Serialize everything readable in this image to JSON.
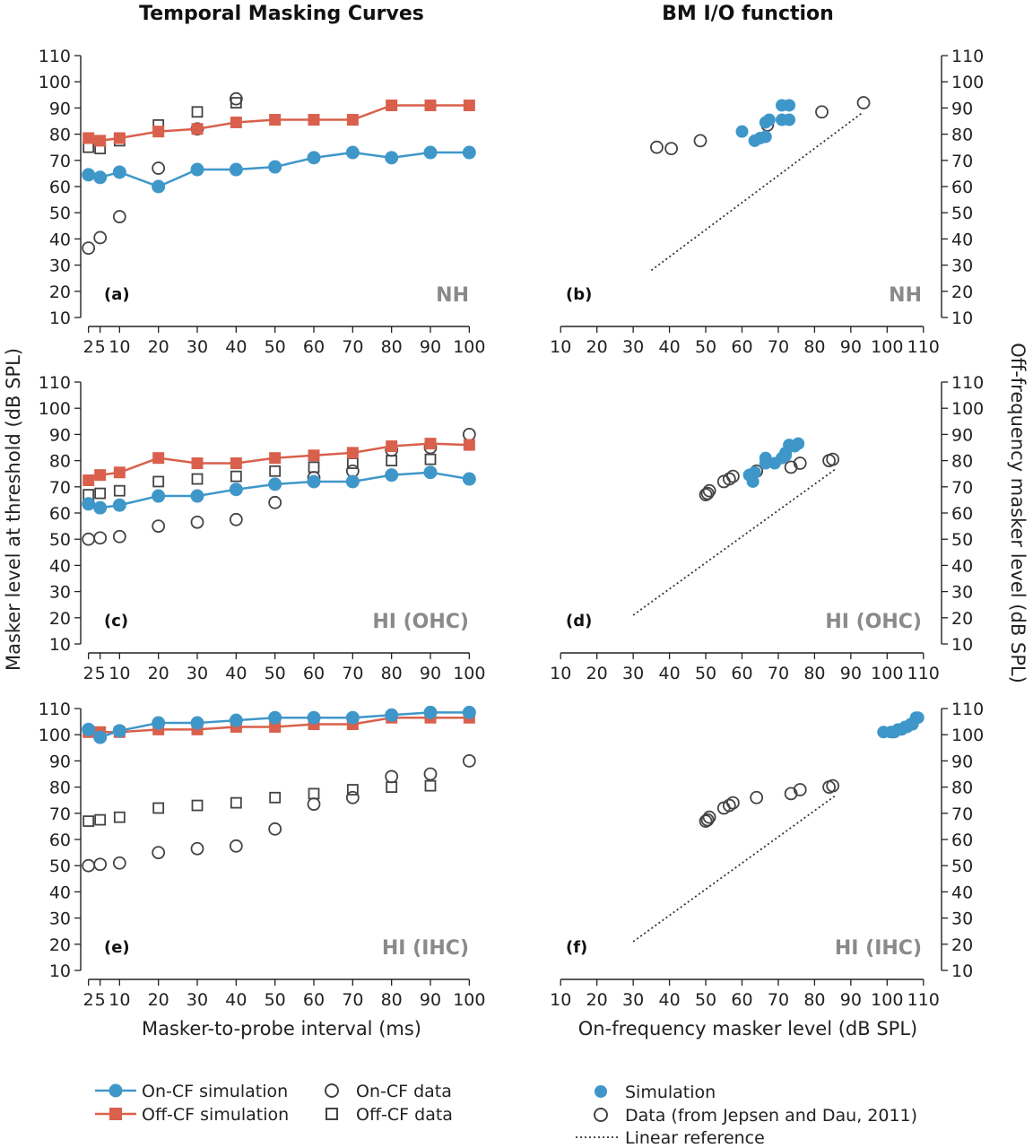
{
  "figure": {
    "left_title": "Temporal Masking Curves",
    "right_title": "BM I/O function",
    "left_ylabel": "Masker level at threshold (dB SPL)",
    "right_ylabel": "Off-frequency masker level (dB SPL)",
    "left_xlabel": "Masker-to-probe interval (ms)",
    "right_xlabel": "On-frequency masker level (dB SPL)"
  },
  "colors": {
    "on_cf": "#3f97c9",
    "off_cf": "#d9604c",
    "data": "#444444",
    "cond_label": "#8a8a8a"
  },
  "legend": {
    "on_cf_sim": "On-CF simulation",
    "off_cf_sim": "Off-CF simulation",
    "on_cf_data": "On-CF data",
    "off_cf_data": "Off-CF data",
    "simulation": "Simulation",
    "data_ref": "Data (from Jepsen and Dau, 2011)",
    "linear_ref": "Linear reference"
  },
  "chart_data": [
    {
      "id": "a",
      "type": "line",
      "panel_label": "(a)",
      "condition": "NH",
      "x_ticks": [
        2,
        5,
        10,
        20,
        30,
        40,
        50,
        60,
        70,
        80,
        90,
        100
      ],
      "x_tick_labels": [
        "2",
        "5",
        "10",
        "20",
        "30",
        "40",
        "50",
        "60",
        "70",
        "80",
        "90",
        "100"
      ],
      "ylim": [
        10,
        110
      ],
      "y_ticks": [
        10,
        20,
        30,
        40,
        50,
        60,
        70,
        80,
        90,
        100,
        110
      ],
      "on_sim": {
        "x": [
          2,
          5,
          10,
          20,
          30,
          40,
          50,
          60,
          70,
          80,
          90,
          100
        ],
        "y": [
          64.5,
          63.5,
          65.5,
          60,
          66.5,
          66.5,
          67.5,
          71,
          73,
          71,
          73,
          73
        ]
      },
      "off_sim": {
        "x": [
          2,
          5,
          10,
          20,
          30,
          40,
          50,
          60,
          70,
          80,
          90,
          100
        ],
        "y": [
          78.5,
          77.5,
          78.5,
          81,
          82,
          84.5,
          85.5,
          85.5,
          85.5,
          91,
          91,
          91
        ]
      },
      "on_data": {
        "x": [
          2,
          5,
          10,
          20,
          30,
          40
        ],
        "y": [
          36.5,
          40.5,
          48.5,
          67,
          82,
          93.5
        ]
      },
      "off_data": {
        "x": [
          2,
          5,
          10,
          20,
          30,
          40
        ],
        "y": [
          75,
          74.5,
          77.5,
          83.5,
          88.5,
          92
        ]
      }
    },
    {
      "id": "c",
      "type": "line",
      "panel_label": "(c)",
      "condition": "HI (OHC)",
      "x_ticks": [
        2,
        5,
        10,
        20,
        30,
        40,
        50,
        60,
        70,
        80,
        90,
        100
      ],
      "x_tick_labels": [
        "2",
        "5",
        "10",
        "20",
        "30",
        "40",
        "50",
        "60",
        "70",
        "80",
        "90",
        "100"
      ],
      "ylim": [
        10,
        110
      ],
      "y_ticks": [
        10,
        20,
        30,
        40,
        50,
        60,
        70,
        80,
        90,
        100,
        110
      ],
      "on_sim": {
        "x": [
          2,
          5,
          10,
          20,
          30,
          40,
          50,
          60,
          70,
          80,
          90,
          100
        ],
        "y": [
          63.5,
          62,
          63,
          66.5,
          66.5,
          69,
          71,
          72,
          72,
          74.5,
          75.5,
          73
        ]
      },
      "off_sim": {
        "x": [
          2,
          5,
          10,
          20,
          30,
          40,
          50,
          60,
          70,
          80,
          90,
          100
        ],
        "y": [
          72.5,
          74.5,
          75.5,
          81,
          79,
          79,
          81,
          82,
          83,
          85.5,
          86.5,
          86
        ]
      },
      "on_data": {
        "x": [
          2,
          5,
          10,
          20,
          30,
          40,
          50,
          60,
          70,
          80,
          90,
          100
        ],
        "y": [
          50,
          50.5,
          51,
          55,
          56.5,
          57.5,
          64,
          73.5,
          76,
          84,
          85,
          90
        ]
      },
      "off_data": {
        "x": [
          2,
          5,
          10,
          20,
          30,
          40,
          50,
          60,
          70,
          80,
          90
        ],
        "y": [
          67,
          67.5,
          68.5,
          72,
          73,
          74,
          76,
          77.5,
          79,
          80,
          80.5
        ]
      }
    },
    {
      "id": "e",
      "type": "line",
      "panel_label": "(e)",
      "condition": "HI (IHC)",
      "x_ticks": [
        2,
        5,
        10,
        20,
        30,
        40,
        50,
        60,
        70,
        80,
        90,
        100
      ],
      "x_tick_labels": [
        "2",
        "5",
        "10",
        "20",
        "30",
        "40",
        "50",
        "60",
        "70",
        "80",
        "90",
        "100"
      ],
      "ylim": [
        10,
        110
      ],
      "y_ticks": [
        10,
        20,
        30,
        40,
        50,
        60,
        70,
        80,
        90,
        100,
        110
      ],
      "on_sim": {
        "x": [
          2,
          5,
          10,
          20,
          30,
          40,
          50,
          60,
          70,
          80,
          90,
          100
        ],
        "y": [
          102,
          99,
          101.5,
          104.5,
          104.5,
          105.5,
          106.5,
          106.5,
          106.5,
          107.5,
          108.5,
          108.5
        ]
      },
      "off_sim": {
        "x": [
          2,
          5,
          10,
          20,
          30,
          40,
          50,
          60,
          70,
          80,
          90,
          100
        ],
        "y": [
          101,
          101,
          101,
          102,
          102,
          103,
          103,
          104,
          104,
          106.5,
          106.5,
          106.5
        ]
      },
      "on_data": {
        "x": [
          2,
          5,
          10,
          20,
          30,
          40,
          50,
          60,
          70,
          80,
          90,
          100
        ],
        "y": [
          50,
          50.5,
          51,
          55,
          56.5,
          57.5,
          64,
          73.5,
          76,
          84,
          85,
          90
        ]
      },
      "off_data": {
        "x": [
          2,
          5,
          10,
          20,
          30,
          40,
          50,
          60,
          70,
          80,
          90
        ],
        "y": [
          67,
          67.5,
          68.5,
          72,
          73,
          74,
          76,
          77.5,
          79,
          80,
          80.5
        ]
      }
    },
    {
      "id": "b",
      "type": "scatter",
      "panel_label": "(b)",
      "condition": "NH",
      "xlim": [
        10,
        110
      ],
      "ylim": [
        10,
        110
      ],
      "x_ticks": [
        10,
        20,
        30,
        40,
        50,
        60,
        70,
        80,
        90,
        100,
        110
      ],
      "y_ticks": [
        10,
        20,
        30,
        40,
        50,
        60,
        70,
        80,
        90,
        100,
        110
      ],
      "sim": {
        "x": [
          60,
          63.5,
          65,
          66.5,
          66.5,
          67.5,
          71,
          73,
          71,
          73
        ],
        "y": [
          81,
          77.5,
          78.5,
          79,
          84.5,
          85.5,
          85.5,
          85.5,
          91,
          91
        ]
      },
      "data": {
        "x": [
          36.5,
          40.5,
          48.5,
          67,
          82,
          93.5
        ],
        "y": [
          75,
          74.5,
          77.5,
          83.5,
          88.5,
          92
        ]
      },
      "linear_ref": {
        "x": [
          35,
          93
        ],
        "y": [
          28,
          88
        ]
      }
    },
    {
      "id": "d",
      "type": "scatter",
      "panel_label": "(d)",
      "condition": "HI (OHC)",
      "xlim": [
        10,
        110
      ],
      "ylim": [
        10,
        110
      ],
      "x_ticks": [
        10,
        20,
        30,
        40,
        50,
        60,
        70,
        80,
        90,
        100,
        110
      ],
      "y_ticks": [
        10,
        20,
        30,
        40,
        50,
        60,
        70,
        80,
        90,
        100,
        110
      ],
      "sim": {
        "x": [
          63,
          62,
          63.5,
          66.5,
          66.5,
          69,
          71,
          72,
          72,
          74.5,
          75.5,
          73
        ],
        "y": [
          72,
          74.5,
          75.5,
          81,
          79,
          79,
          81,
          82,
          83,
          85.5,
          86.5,
          86
        ]
      },
      "data": {
        "x": [
          50,
          50.5,
          51,
          55,
          56.5,
          57.5,
          64,
          73.5,
          76,
          84,
          85
        ],
        "y": [
          67,
          67.5,
          68.5,
          72,
          73,
          74,
          76,
          77.5,
          79,
          80,
          80.5
        ]
      },
      "linear_ref": {
        "x": [
          30,
          86
        ],
        "y": [
          21,
          77
        ]
      }
    },
    {
      "id": "f",
      "type": "scatter",
      "panel_label": "(f)",
      "condition": "HI (IHC)",
      "xlim": [
        10,
        110
      ],
      "ylim": [
        10,
        110
      ],
      "x_ticks": [
        10,
        20,
        30,
        40,
        50,
        60,
        70,
        80,
        90,
        100,
        110
      ],
      "y_ticks": [
        10,
        20,
        30,
        40,
        50,
        60,
        70,
        80,
        90,
        100,
        110
      ],
      "sim": {
        "x": [
          99,
          101,
          101.5,
          102,
          103,
          104,
          105,
          105.5,
          106.5,
          107,
          108,
          108.5
        ],
        "y": [
          101,
          101,
          101,
          101,
          102,
          102,
          103,
          103,
          104,
          104,
          106.5,
          106.5
        ]
      },
      "data": {
        "x": [
          50,
          50.5,
          51,
          55,
          56.5,
          57.5,
          64,
          73.5,
          76,
          84,
          85
        ],
        "y": [
          67,
          67.5,
          68.5,
          72,
          73,
          74,
          76,
          77.5,
          79,
          80,
          80.5
        ]
      },
      "linear_ref": {
        "x": [
          30,
          86
        ],
        "y": [
          21,
          77
        ]
      }
    }
  ]
}
